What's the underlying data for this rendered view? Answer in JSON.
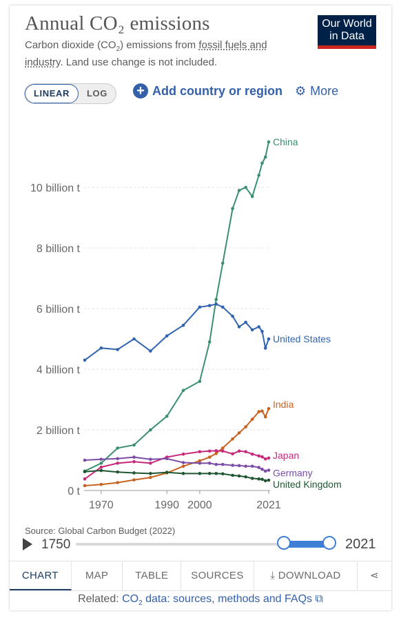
{
  "header": {
    "title": "Annual CO₂ emissions",
    "subtitle_1": "Carbon dioxide (CO",
    "subtitle_sub": "2",
    "subtitle_2": ") emissions from ",
    "subtitle_link": "fossil fuels and industry",
    "subtitle_3": ". Land use change is not included.",
    "logo_line1": "Our World",
    "logo_line2": "in Data"
  },
  "controls": {
    "linear_label": "LINEAR",
    "log_label": "LOG",
    "add_label": "Add country or region",
    "more_label": "More"
  },
  "chart_data": {
    "type": "line",
    "title": "Annual CO₂ emissions",
    "xlabel": "",
    "ylabel": "",
    "xlim": [
      1965,
      2021
    ],
    "ylim": [
      0,
      12
    ],
    "x_ticks": [
      1970,
      1990,
      2000,
      2021
    ],
    "x_tick_labels": [
      "1970",
      "1990",
      "2000",
      "2021"
    ],
    "y_ticks": [
      0,
      2,
      4,
      6,
      8,
      10
    ],
    "y_tick_labels": [
      "0 t",
      "2 billion t",
      "4 billion t",
      "6 billion t",
      "8 billion t",
      "10 billion t"
    ],
    "grid": "horizontal dashed",
    "legend": "end-of-line labels",
    "x": [
      1965,
      1970,
      1975,
      1980,
      1985,
      1990,
      1995,
      2000,
      2003,
      2005,
      2007,
      2010,
      2012,
      2014,
      2016,
      2018,
      2019,
      2020,
      2021
    ],
    "series": [
      {
        "name": "China",
        "color": "#3a8f6f",
        "values": [
          0.64,
          0.9,
          1.4,
          1.5,
          2.0,
          2.45,
          3.3,
          3.6,
          4.9,
          6.3,
          7.5,
          9.3,
          9.9,
          10.0,
          9.7,
          10.4,
          10.8,
          11.0,
          11.5
        ]
      },
      {
        "name": "United States",
        "color": "#3064af",
        "values": [
          4.3,
          4.7,
          4.65,
          5.0,
          4.6,
          5.1,
          5.45,
          6.05,
          6.1,
          6.15,
          6.05,
          5.75,
          5.4,
          5.55,
          5.3,
          5.4,
          5.25,
          4.7,
          5.0
        ]
      },
      {
        "name": "India",
        "color": "#c8621f",
        "values": [
          0.16,
          0.2,
          0.26,
          0.35,
          0.43,
          0.58,
          0.8,
          0.98,
          1.1,
          1.22,
          1.4,
          1.7,
          1.9,
          2.1,
          2.35,
          2.6,
          2.62,
          2.43,
          2.7
        ]
      },
      {
        "name": "Japan",
        "color": "#c9287a",
        "values": [
          0.38,
          0.77,
          0.9,
          0.95,
          0.9,
          1.1,
          1.2,
          1.28,
          1.3,
          1.31,
          1.3,
          1.21,
          1.3,
          1.28,
          1.2,
          1.14,
          1.11,
          1.04,
          1.07
        ]
      },
      {
        "name": "Germany",
        "color": "#7a4ca6",
        "values": [
          1.0,
          1.03,
          1.05,
          1.1,
          1.03,
          1.05,
          0.92,
          0.9,
          0.9,
          0.86,
          0.86,
          0.83,
          0.82,
          0.8,
          0.8,
          0.76,
          0.7,
          0.64,
          0.67
        ]
      },
      {
        "name": "United Kingdom",
        "color": "#1e5631",
        "values": [
          0.62,
          0.66,
          0.61,
          0.58,
          0.56,
          0.6,
          0.56,
          0.56,
          0.56,
          0.56,
          0.55,
          0.5,
          0.48,
          0.45,
          0.4,
          0.38,
          0.37,
          0.32,
          0.34
        ]
      }
    ]
  },
  "footer": {
    "source": "Source: Global Carbon Budget (2022)",
    "source_url": "OurWorldInData.org/co2-and-greenhouse-gas-emissions • CC BY",
    "timeline_start": "1750",
    "timeline_end": "2021",
    "tabs": [
      "CHART",
      "MAP",
      "TABLE",
      "SOURCES",
      "DOWNLOAD"
    ],
    "related_prefix": "Related: ",
    "related_link_1": "CO",
    "related_link_sub": "2",
    "related_link_2": " data: sources, methods and FAQs"
  }
}
